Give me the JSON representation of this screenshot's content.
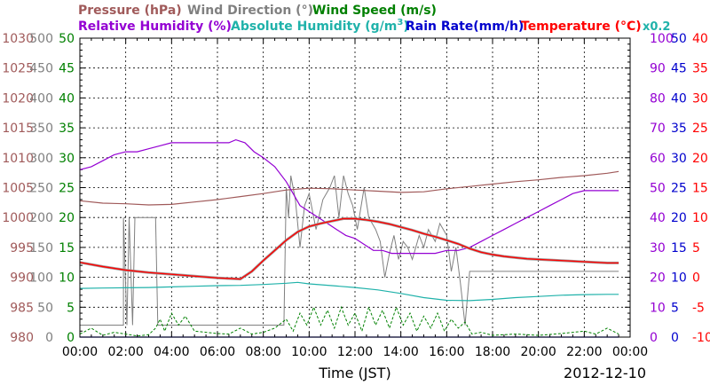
{
  "chart_data": {
    "type": "line",
    "date_label": "2012-12-10",
    "xlabel": "Time (JST)",
    "x_ticks": [
      "00:00",
      "02:00",
      "04:00",
      "06:00",
      "08:00",
      "10:00",
      "12:00",
      "14:00",
      "16:00",
      "18:00",
      "20:00",
      "22:00",
      "00:00"
    ],
    "x_range_hours": [
      0,
      24
    ],
    "legend": {
      "pressure": "Pressure (hPa)",
      "wind_direction": "Wind Direction (°)",
      "wind_speed": "Wind Speed (m/s)",
      "relative_humidity": "Relative Humidity (%)",
      "absolute_humidity_prefix": "Absolute Humidity (g/m",
      "absolute_humidity_sup": "3",
      "absolute_humidity_suffix": ")",
      "rain_rate": "Rain Rate(mm/h)",
      "temperature": "Temperature (°C)",
      "multiplier": "x0.2"
    },
    "colors": {
      "pressure": "#a05a5a",
      "wind_direction": "#808080",
      "wind_speed": "#008000",
      "relative_humidity": "#9400d3",
      "absolute_humidity": "#20b2aa",
      "rain_rate": "#0000cd",
      "temperature": "#ff0000",
      "temperature_outline": "#a0a0a0",
      "multiplier": "#20b2aa"
    },
    "axes": {
      "pressure": {
        "range": [
          980,
          1030
        ],
        "ticks": [
          "980",
          "985",
          "990",
          "995",
          "1000",
          "1005",
          "1010",
          "1015",
          "1020",
          "1025",
          "1030"
        ]
      },
      "wind_direction": {
        "range": [
          0,
          500
        ],
        "ticks": [
          "0",
          "50",
          "100",
          "150",
          "200",
          "250",
          "300",
          "350",
          "400",
          "450",
          "500"
        ]
      },
      "wind_speed": {
        "range": [
          0,
          50
        ],
        "ticks": [
          "0",
          "5",
          "10",
          "15",
          "20",
          "25",
          "30",
          "35",
          "40",
          "45",
          "50"
        ]
      },
      "relative_humidity": {
        "range": [
          0,
          100
        ],
        "ticks": [
          "0",
          "10",
          "20",
          "30",
          "40",
          "50",
          "60",
          "70",
          "80",
          "90",
          "100"
        ]
      },
      "rain_rate": {
        "range": [
          0,
          50
        ],
        "ticks": [
          "0",
          "5",
          "10",
          "15",
          "20",
          "25",
          "30",
          "35",
          "40",
          "45",
          "50"
        ]
      },
      "temperature": {
        "range": [
          -10,
          40
        ],
        "ticks": [
          "-10",
          "-5",
          "0",
          "5",
          "10",
          "15",
          "20",
          "25",
          "30",
          "35",
          "40"
        ]
      }
    },
    "series": [
      {
        "name": "Pressure (hPa)",
        "key": "pressure",
        "axis": "pressure",
        "points": [
          [
            0,
            1002.8
          ],
          [
            1,
            1002.4
          ],
          [
            2,
            1002.3
          ],
          [
            3,
            1002.1
          ],
          [
            4,
            1002.2
          ],
          [
            5,
            1002.6
          ],
          [
            6,
            1003.0
          ],
          [
            7,
            1003.5
          ],
          [
            8,
            1004.0
          ],
          [
            9,
            1004.6
          ],
          [
            10,
            1004.9
          ],
          [
            11,
            1004.8
          ],
          [
            12,
            1004.6
          ],
          [
            13,
            1004.4
          ],
          [
            14,
            1004.2
          ],
          [
            15,
            1004.3
          ],
          [
            16,
            1004.8
          ],
          [
            17,
            1005.2
          ],
          [
            18,
            1005.6
          ],
          [
            19,
            1006.0
          ],
          [
            20,
            1006.3
          ],
          [
            21,
            1006.7
          ],
          [
            22,
            1007.0
          ],
          [
            23,
            1007.4
          ],
          [
            23.5,
            1007.7
          ]
        ]
      },
      {
        "name": "Wind Direction (°)",
        "key": "wind_direction",
        "axis": "wind_direction",
        "points": [
          [
            0,
            20
          ],
          [
            1.9,
            20
          ],
          [
            1.9,
            200
          ],
          [
            2.05,
            20
          ],
          [
            2.15,
            200
          ],
          [
            2.3,
            20
          ],
          [
            2.4,
            200
          ],
          [
            2.55,
            200
          ],
          [
            2.6,
            200
          ],
          [
            3.3,
            200
          ],
          [
            3.4,
            20
          ],
          [
            8.9,
            20
          ],
          [
            9.0,
            250
          ],
          [
            9.1,
            200
          ],
          [
            9.2,
            270
          ],
          [
            9.4,
            230
          ],
          [
            9.6,
            150
          ],
          [
            9.8,
            220
          ],
          [
            10.0,
            240
          ],
          [
            10.3,
            180
          ],
          [
            10.6,
            230
          ],
          [
            10.9,
            250
          ],
          [
            11.1,
            270
          ],
          [
            11.3,
            200
          ],
          [
            11.5,
            270
          ],
          [
            11.7,
            240
          ],
          [
            11.9,
            220
          ],
          [
            12.1,
            180
          ],
          [
            12.4,
            250
          ],
          [
            12.6,
            200
          ],
          [
            12.9,
            180
          ],
          [
            13.1,
            160
          ],
          [
            13.3,
            100
          ],
          [
            13.5,
            140
          ],
          [
            13.7,
            170
          ],
          [
            13.9,
            130
          ],
          [
            14.1,
            160
          ],
          [
            14.3,
            150
          ],
          [
            14.5,
            130
          ],
          [
            14.8,
            170
          ],
          [
            15.0,
            150
          ],
          [
            15.2,
            180
          ],
          [
            15.5,
            160
          ],
          [
            15.7,
            190
          ],
          [
            16.0,
            170
          ],
          [
            16.2,
            110
          ],
          [
            16.4,
            150
          ],
          [
            16.6,
            90
          ],
          [
            16.8,
            20
          ],
          [
            17.0,
            110
          ],
          [
            17.2,
            110
          ],
          [
            23.5,
            110
          ]
        ]
      },
      {
        "name": "Wind Speed (m/s)",
        "key": "wind_speed",
        "axis": "wind_speed",
        "points": [
          [
            0,
            0.5
          ],
          [
            0.5,
            1.5
          ],
          [
            1,
            0.3
          ],
          [
            1.5,
            0.8
          ],
          [
            2,
            0.5
          ],
          [
            2.5,
            0.2
          ],
          [
            3,
            0.4
          ],
          [
            3.3,
            1.5
          ],
          [
            3.5,
            3
          ],
          [
            3.7,
            1
          ],
          [
            4,
            4
          ],
          [
            4.3,
            2
          ],
          [
            4.6,
            3.5
          ],
          [
            5,
            1
          ],
          [
            5.5,
            0.8
          ],
          [
            6,
            0.6
          ],
          [
            6.5,
            0.5
          ],
          [
            7,
            1.5
          ],
          [
            7.5,
            0.5
          ],
          [
            8,
            0.8
          ],
          [
            8.5,
            1.5
          ],
          [
            9,
            3
          ],
          [
            9.3,
            1
          ],
          [
            9.6,
            4
          ],
          [
            9.9,
            2
          ],
          [
            10.2,
            5
          ],
          [
            10.5,
            2
          ],
          [
            10.8,
            4.5
          ],
          [
            11.1,
            1.5
          ],
          [
            11.4,
            5
          ],
          [
            11.7,
            2
          ],
          [
            12,
            4
          ],
          [
            12.3,
            1
          ],
          [
            12.6,
            5
          ],
          [
            12.9,
            2
          ],
          [
            13.2,
            4.5
          ],
          [
            13.5,
            1.5
          ],
          [
            13.8,
            5
          ],
          [
            14.1,
            2
          ],
          [
            14.4,
            4
          ],
          [
            14.7,
            1
          ],
          [
            15,
            3.5
          ],
          [
            15.3,
            1.5
          ],
          [
            15.6,
            4
          ],
          [
            15.9,
            1
          ],
          [
            16.2,
            3
          ],
          [
            16.5,
            1.5
          ],
          [
            16.8,
            2.5
          ],
          [
            17.1,
            0.5
          ],
          [
            17.5,
            0.8
          ],
          [
            18,
            0.3
          ],
          [
            19,
            0.5
          ],
          [
            20,
            0.3
          ],
          [
            21,
            0.6
          ],
          [
            22,
            1
          ],
          [
            22.5,
            0.5
          ],
          [
            23,
            1.5
          ],
          [
            23.5,
            0.5
          ]
        ]
      },
      {
        "name": "Relative Humidity (%)",
        "key": "relative_humidity",
        "axis": "relative_humidity",
        "points": [
          [
            0,
            56
          ],
          [
            0.5,
            57
          ],
          [
            1,
            59
          ],
          [
            1.5,
            61
          ],
          [
            2,
            62
          ],
          [
            2.5,
            62
          ],
          [
            3,
            63
          ],
          [
            3.5,
            64
          ],
          [
            4,
            65
          ],
          [
            4.5,
            65
          ],
          [
            5,
            65
          ],
          [
            5.5,
            65
          ],
          [
            6,
            65
          ],
          [
            6.5,
            65
          ],
          [
            6.8,
            66
          ],
          [
            7.2,
            65
          ],
          [
            7.6,
            62
          ],
          [
            8,
            60
          ],
          [
            8.5,
            57
          ],
          [
            9,
            52
          ],
          [
            9.3,
            48
          ],
          [
            9.6,
            44
          ],
          [
            10,
            42
          ],
          [
            10.4,
            40
          ],
          [
            10.8,
            38
          ],
          [
            11.2,
            36
          ],
          [
            11.6,
            34
          ],
          [
            12,
            33
          ],
          [
            12.4,
            31
          ],
          [
            12.8,
            29
          ],
          [
            13.2,
            29
          ],
          [
            13.6,
            28
          ],
          [
            14,
            28
          ],
          [
            14.5,
            28
          ],
          [
            15,
            28
          ],
          [
            15.5,
            28
          ],
          [
            16,
            29
          ],
          [
            16.5,
            29
          ],
          [
            17,
            30
          ],
          [
            17.5,
            32
          ],
          [
            18,
            34
          ],
          [
            18.5,
            36
          ],
          [
            19,
            38
          ],
          [
            19.5,
            40
          ],
          [
            20,
            42
          ],
          [
            20.5,
            44
          ],
          [
            21,
            46
          ],
          [
            21.5,
            48
          ],
          [
            22,
            49
          ],
          [
            22.5,
            49
          ],
          [
            23,
            49
          ],
          [
            23.5,
            49
          ]
        ]
      },
      {
        "name": "Absolute Humidity (g/m3)",
        "key": "absolute_humidity",
        "axis": "relative_humidity",
        "points": [
          [
            0,
            16.3
          ],
          [
            1,
            16.4
          ],
          [
            2,
            16.5
          ],
          [
            3,
            16.6
          ],
          [
            4,
            16.8
          ],
          [
            5,
            17.0
          ],
          [
            6,
            17.2
          ],
          [
            7,
            17.3
          ],
          [
            8,
            17.6
          ],
          [
            9,
            18.0
          ],
          [
            9.5,
            18.3
          ],
          [
            10,
            17.8
          ],
          [
            11,
            17.2
          ],
          [
            12,
            16.6
          ],
          [
            13,
            15.8
          ],
          [
            14,
            14.6
          ],
          [
            15,
            13.2
          ],
          [
            16,
            12.3
          ],
          [
            17,
            12.2
          ],
          [
            18,
            12.6
          ],
          [
            19,
            13.2
          ],
          [
            20,
            13.6
          ],
          [
            21,
            14.0
          ],
          [
            22,
            14.2
          ],
          [
            23,
            14.3
          ],
          [
            23.5,
            14.3
          ]
        ]
      },
      {
        "name": "Rain Rate(mm/h)",
        "key": "rain_rate",
        "axis": "rain_rate",
        "points": [
          [
            0,
            0
          ],
          [
            23.5,
            0
          ]
        ]
      },
      {
        "name": "Temperature (°C)",
        "key": "temperature",
        "axis": "temperature",
        "points": [
          [
            0,
            2.5
          ],
          [
            1,
            1.8
          ],
          [
            2,
            1.2
          ],
          [
            3,
            0.8
          ],
          [
            4,
            0.5
          ],
          [
            5,
            0.2
          ],
          [
            6,
            -0.1
          ],
          [
            7,
            -0.3
          ],
          [
            7.5,
            1
          ],
          [
            8,
            2.8
          ],
          [
            8.5,
            4.5
          ],
          [
            9,
            6.2
          ],
          [
            9.5,
            7.6
          ],
          [
            10,
            8.5
          ],
          [
            10.5,
            9.0
          ],
          [
            11,
            9.4
          ],
          [
            11.5,
            9.8
          ],
          [
            12,
            9.8
          ],
          [
            12.5,
            9.6
          ],
          [
            13,
            9.3
          ],
          [
            13.5,
            8.9
          ],
          [
            14,
            8.4
          ],
          [
            14.5,
            7.9
          ],
          [
            15,
            7.3
          ],
          [
            15.5,
            6.8
          ],
          [
            16,
            6.2
          ],
          [
            16.5,
            5.6
          ],
          [
            17,
            4.8
          ],
          [
            17.5,
            4.2
          ],
          [
            18,
            3.8
          ],
          [
            18.5,
            3.5
          ],
          [
            19,
            3.3
          ],
          [
            19.5,
            3.1
          ],
          [
            20,
            3.0
          ],
          [
            21,
            2.8
          ],
          [
            22,
            2.6
          ],
          [
            23,
            2.4
          ],
          [
            23.5,
            2.4
          ]
        ]
      }
    ]
  }
}
